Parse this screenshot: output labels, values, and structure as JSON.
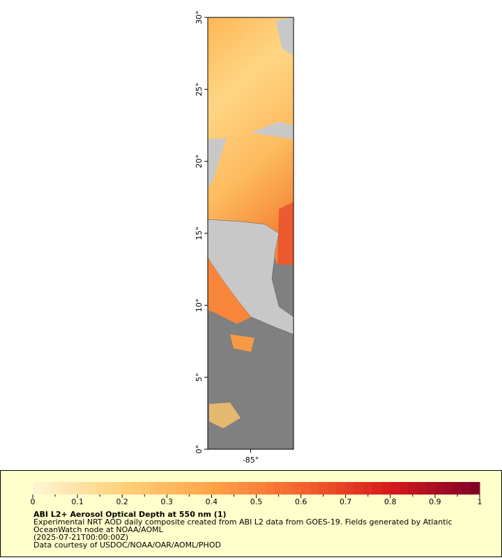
{
  "map": {
    "xlim": [
      -88,
      -82
    ],
    "ylim": [
      0,
      30
    ],
    "xticks": [
      {
        "value": -85,
        "label": "-85°"
      }
    ],
    "yticks": [
      {
        "value": 0,
        "label": "0°"
      },
      {
        "value": 5,
        "label": "5°"
      },
      {
        "value": 10,
        "label": "10°"
      },
      {
        "value": 15,
        "label": "15°"
      },
      {
        "value": 20,
        "label": "20°"
      },
      {
        "value": 25,
        "label": "25°"
      },
      {
        "value": 30,
        "label": "30°"
      }
    ]
  },
  "colorbar": {
    "lim": [
      0,
      1
    ],
    "ticks": [
      0,
      0.1,
      0.2,
      0.3,
      0.4,
      0.5,
      0.6,
      0.7,
      0.8,
      0.9,
      1
    ],
    "minor_ticks": [
      0.05,
      0.15,
      0.25,
      0.35,
      0.45,
      0.55,
      0.65,
      0.75,
      0.85,
      0.95
    ],
    "colors": [
      "#fff5d6",
      "#fed17a",
      "#fea447",
      "#f5642d",
      "#d7191c",
      "#800026"
    ]
  },
  "caption": {
    "title": "ABI L2+ Aerosol Optical Depth at 550 nm (1)",
    "lines": [
      "Experimental NRT AOD daily composite created from ABI L2 data from GOES-19. Fields generated by Atlantic",
      "OceanWatch node at NOAA/AOML",
      "(2025-07-21T00:00:00Z)",
      "Data courtesy of USDOC/NOAA/OAR/AOML/PHOD"
    ]
  }
}
